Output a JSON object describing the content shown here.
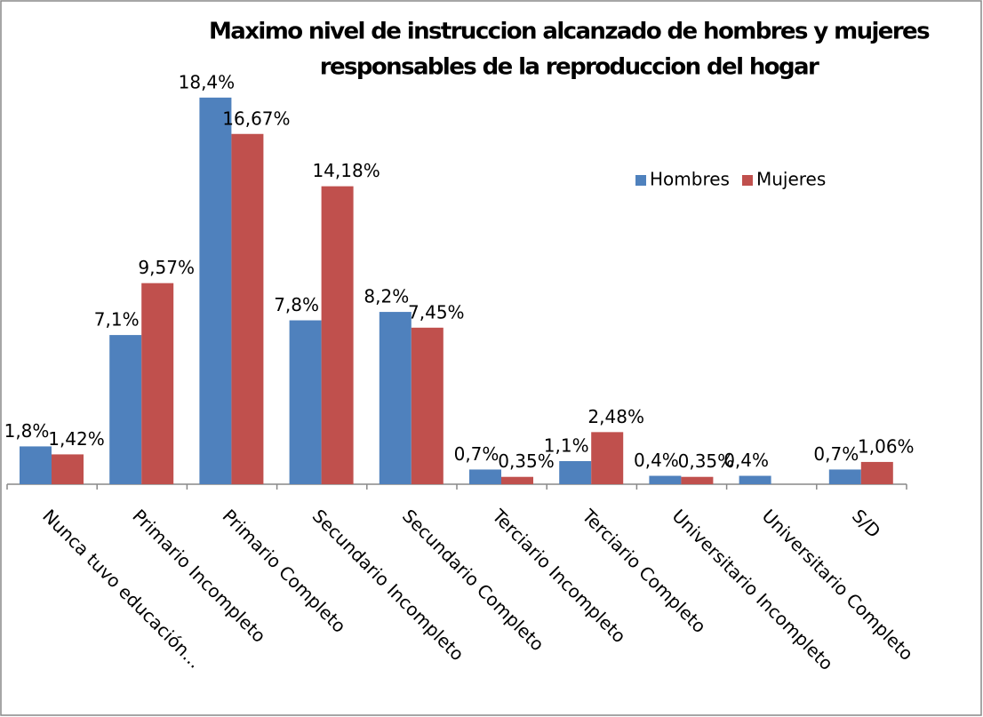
{
  "chart_data": {
    "type": "bar",
    "title": [
      "Maximo nivel de instruccion alcanzado de hombres y mujeres",
      "responsables de la reproduccion del hogar"
    ],
    "categories": [
      "Nunca tuvo educación...",
      "Primario Incompleto",
      "Primario Completo",
      "Secundario Incompleto",
      "Secundario Completo",
      "Terciario Incompleto",
      "Terciario Completo",
      "Universitario Incompleto",
      "Universitario Completo",
      "S/D"
    ],
    "series": [
      {
        "name": "Hombres",
        "color": "#4f81bd",
        "values": [
          1.8,
          7.1,
          18.4,
          7.8,
          8.2,
          0.7,
          1.1,
          0.4,
          0.4,
          0.7
        ],
        "value_labels": [
          "1,8%",
          "7,1%",
          "18,4%",
          "7,8%",
          "8,2%",
          "0,7%",
          "1,1%",
          "0,4%",
          "0,4%",
          "0,7%"
        ]
      },
      {
        "name": "Mujeres",
        "color": "#c0504d",
        "values": [
          1.42,
          9.57,
          16.67,
          14.18,
          7.45,
          0.35,
          2.48,
          0.35,
          null,
          1.06
        ],
        "value_labels": [
          "1,42%",
          "9,57%",
          "16,67%",
          "14,18%",
          "7,45%",
          "0,35%",
          "2,48%",
          "0,35%",
          null,
          "1,06%"
        ]
      }
    ],
    "ylim": [
      0,
      20
    ],
    "legend": "upper right"
  }
}
